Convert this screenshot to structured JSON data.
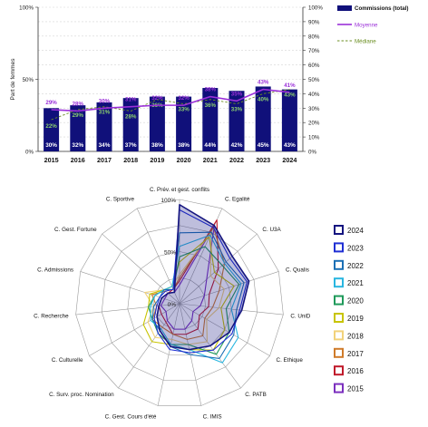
{
  "chart_data": [
    {
      "type": "bar",
      "ylabel": "Part de femmes",
      "categories": [
        "2015",
        "2016",
        "2017",
        "2018",
        "2019",
        "2020",
        "2021",
        "2022",
        "2023",
        "2024"
      ],
      "left_axis_ticks": [
        "0%",
        "50%",
        "100%"
      ],
      "right_axis_ticks": [
        "0%",
        "10%",
        "20%",
        "30%",
        "40%",
        "50%",
        "60%",
        "70%",
        "80%",
        "90%",
        "100%"
      ],
      "ylim": [
        0,
        100
      ],
      "colors": {
        "bars": "#10107a",
        "moyenne": "#9b30d9",
        "mediane": "#6b8e23",
        "bar_label": "#ffffff",
        "mediane_label": "#8bd06e"
      },
      "series": [
        {
          "name": "Commissions (total)",
          "values": [
            30,
            32,
            34,
            37,
            38,
            38,
            44,
            42,
            45,
            43
          ],
          "labels": [
            "30%",
            "32%",
            "34%",
            "37%",
            "38%",
            "38%",
            "44%",
            "42%",
            "45%",
            "43%"
          ]
        },
        {
          "name": "Moyenne",
          "values": [
            29,
            28,
            30,
            31,
            32,
            32,
            38,
            35,
            43,
            41
          ],
          "labels": [
            "29%",
            "28%",
            "30%",
            "31%",
            "32%",
            "32%",
            "38%",
            "35%",
            "43%",
            "41%"
          ]
        },
        {
          "name": "Médiane",
          "values": [
            22,
            29,
            31,
            28,
            36,
            33,
            36,
            33,
            40,
            43
          ],
          "labels": [
            "22%",
            "29%",
            "31%",
            "28%",
            "36%",
            "33%",
            "36%",
            "33%",
            "40%",
            "43%"
          ]
        }
      ]
    },
    {
      "type": "radar",
      "axes": [
        "C. Prév. et gest. conflits",
        "C. Egalité",
        "C. U3A",
        "C. Qualis",
        "C. UniD",
        "C. Ethique",
        "C. PATB",
        "C. IMIS",
        "C. Gest. Cours d'été",
        "C. Surv. proc. Nomination",
        "C. Culturelle",
        "C. Recherche",
        "C. Admissions",
        "C. Gest. Fortune",
        "C. Sportive"
      ],
      "ring_labels": [
        "0%",
        "50%",
        "100%"
      ],
      "rlim": [
        0,
        100
      ],
      "series": [
        {
          "name": "2015",
          "color": "#7b2fbe",
          "values": [
            18,
            82,
            35,
            25,
            20,
            15,
            20,
            25,
            25,
            20,
            15,
            18,
            15,
            15,
            12
          ]
        },
        {
          "name": "2016",
          "color": "#c0192a",
          "values": [
            22,
            88,
            50,
            30,
            28,
            22,
            30,
            30,
            30,
            22,
            20,
            20,
            18,
            15,
            15
          ]
        },
        {
          "name": "2017",
          "color": "#cf7b2a",
          "values": [
            25,
            80,
            58,
            40,
            32,
            28,
            38,
            35,
            30,
            28,
            30,
            22,
            28,
            18,
            15
          ]
        },
        {
          "name": "2018",
          "color": "#f2d27a",
          "values": [
            28,
            75,
            40,
            45,
            38,
            30,
            45,
            40,
            35,
            40,
            35,
            25,
            35,
            20,
            18
          ]
        },
        {
          "name": "2019",
          "color": "#c8c400",
          "values": [
            40,
            70,
            45,
            55,
            40,
            50,
            55,
            45,
            40,
            45,
            40,
            30,
            30,
            20,
            18
          ]
        },
        {
          "name": "2020",
          "color": "#1f9a5a",
          "values": [
            45,
            60,
            55,
            60,
            45,
            55,
            60,
            40,
            40,
            35,
            30,
            30,
            25,
            20,
            15
          ]
        },
        {
          "name": "2021",
          "color": "#29b6e0",
          "values": [
            55,
            72,
            58,
            62,
            50,
            65,
            70,
            45,
            40,
            30,
            32,
            28,
            25,
            20,
            18
          ]
        },
        {
          "name": "2022",
          "color": "#1a6fb5",
          "values": [
            68,
            75,
            60,
            65,
            55,
            60,
            65,
            50,
            42,
            32,
            30,
            25,
            20,
            20,
            15
          ]
        },
        {
          "name": "2023",
          "color": "#1f2fd4",
          "values": [
            90,
            80,
            65,
            68,
            58,
            58,
            55,
            48,
            45,
            35,
            28,
            22,
            20,
            18,
            15
          ]
        },
        {
          "name": "2024",
          "color": "#151580",
          "values": [
            95,
            82,
            68,
            70,
            60,
            55,
            50,
            45,
            42,
            32,
            25,
            20,
            18,
            15,
            12
          ]
        }
      ],
      "legend_order": [
        "2024",
        "2023",
        "2022",
        "2021",
        "2020",
        "2019",
        "2018",
        "2017",
        "2016",
        "2015"
      ]
    }
  ]
}
